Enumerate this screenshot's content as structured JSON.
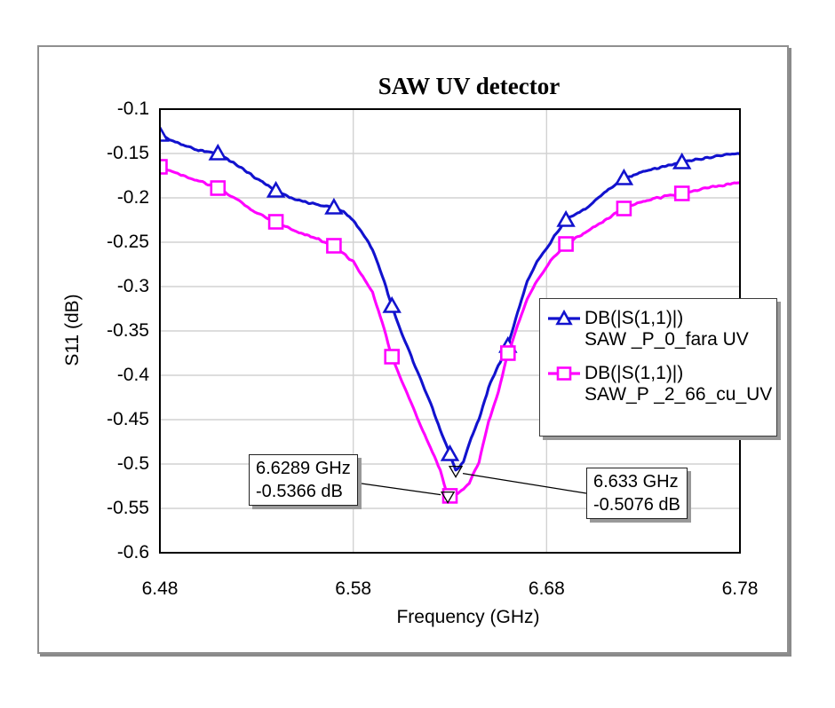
{
  "chart_data": {
    "type": "line",
    "title": "SAW UV detector",
    "xlabel": "Frequency (GHz)",
    "ylabel": "S11 (dB)",
    "xlim": [
      6.48,
      6.78
    ],
    "ylim": [
      -0.6,
      -0.1
    ],
    "grid": true,
    "grid_color": "#d2d2d2",
    "legend_position": "right-middle",
    "x_ticks": {
      "values": [
        6.48,
        6.58,
        6.68,
        6.78
      ],
      "labels": [
        "6.48",
        "6.58",
        "6.68",
        "6.78"
      ]
    },
    "y_ticks": {
      "values": [
        -0.1,
        -0.15,
        -0.2,
        -0.25,
        -0.3,
        -0.35,
        -0.4,
        -0.45,
        -0.5,
        -0.55,
        -0.6
      ],
      "labels": [
        "-0.1",
        "-0.15",
        "-0.2",
        "-0.25",
        "-0.3",
        "-0.35",
        "-0.4",
        "-0.45",
        "-0.5",
        "-0.55",
        "-0.6"
      ]
    },
    "series": [
      {
        "name": "SAW _P_0_fara UV",
        "legend_line1": "DB(|S(1,1)|)",
        "legend_line2": "SAW _P_0_fara UV",
        "color": "#1212ce",
        "marker": "triangle",
        "marker_x": [
          6.48,
          6.51,
          6.54,
          6.57,
          6.6,
          6.63,
          6.66,
          6.69,
          6.72,
          6.75
        ],
        "points": [
          [
            6.48,
            -0.129
          ],
          [
            6.49,
            -0.139
          ],
          [
            6.5,
            -0.146
          ],
          [
            6.51,
            -0.15
          ],
          [
            6.52,
            -0.163
          ],
          [
            6.53,
            -0.178
          ],
          [
            6.54,
            -0.192
          ],
          [
            6.55,
            -0.202
          ],
          [
            6.56,
            -0.207
          ],
          [
            6.57,
            -0.211
          ],
          [
            6.575,
            -0.215
          ],
          [
            6.58,
            -0.226
          ],
          [
            6.585,
            -0.24
          ],
          [
            6.59,
            -0.258
          ],
          [
            6.595,
            -0.287
          ],
          [
            6.6,
            -0.322
          ],
          [
            6.605,
            -0.352
          ],
          [
            6.61,
            -0.379
          ],
          [
            6.615,
            -0.406
          ],
          [
            6.62,
            -0.432
          ],
          [
            6.625,
            -0.462
          ],
          [
            6.63,
            -0.489
          ],
          [
            6.633,
            -0.5076
          ],
          [
            6.637,
            -0.498
          ],
          [
            6.64,
            -0.477
          ],
          [
            6.645,
            -0.449
          ],
          [
            6.65,
            -0.414
          ],
          [
            6.655,
            -0.389
          ],
          [
            6.66,
            -0.367
          ],
          [
            6.665,
            -0.329
          ],
          [
            6.67,
            -0.294
          ],
          [
            6.675,
            -0.271
          ],
          [
            6.68,
            -0.257
          ],
          [
            6.685,
            -0.24
          ],
          [
            6.69,
            -0.225
          ],
          [
            6.7,
            -0.212
          ],
          [
            6.71,
            -0.194
          ],
          [
            6.72,
            -0.178
          ],
          [
            6.73,
            -0.171
          ],
          [
            6.74,
            -0.165
          ],
          [
            6.75,
            -0.16
          ],
          [
            6.76,
            -0.156
          ],
          [
            6.77,
            -0.152
          ],
          [
            6.78,
            -0.15
          ]
        ]
      },
      {
        "name": "SAW_P _2_66_cu_UV",
        "legend_line1": "DB(|S(1,1)|)",
        "legend_line2": "SAW_P _2_66_cu_UV",
        "color": "#ff00ff",
        "marker": "square",
        "marker_x": [
          6.48,
          6.51,
          6.54,
          6.57,
          6.6,
          6.63,
          6.66,
          6.69,
          6.72,
          6.75
        ],
        "points": [
          [
            6.48,
            -0.165
          ],
          [
            6.49,
            -0.173
          ],
          [
            6.5,
            -0.181
          ],
          [
            6.51,
            -0.189
          ],
          [
            6.52,
            -0.202
          ],
          [
            6.53,
            -0.217
          ],
          [
            6.54,
            -0.227
          ],
          [
            6.55,
            -0.237
          ],
          [
            6.56,
            -0.245
          ],
          [
            6.57,
            -0.254
          ],
          [
            6.58,
            -0.272
          ],
          [
            6.585,
            -0.288
          ],
          [
            6.59,
            -0.307
          ],
          [
            6.595,
            -0.341
          ],
          [
            6.6,
            -0.379
          ],
          [
            6.605,
            -0.406
          ],
          [
            6.61,
            -0.432
          ],
          [
            6.615,
            -0.458
          ],
          [
            6.62,
            -0.482
          ],
          [
            6.625,
            -0.507
          ],
          [
            6.6289,
            -0.5366
          ],
          [
            6.633,
            -0.534
          ],
          [
            6.637,
            -0.528
          ],
          [
            6.64,
            -0.521
          ],
          [
            6.645,
            -0.498
          ],
          [
            6.65,
            -0.452
          ],
          [
            6.655,
            -0.419
          ],
          [
            6.66,
            -0.375
          ],
          [
            6.665,
            -0.344
          ],
          [
            6.67,
            -0.314
          ],
          [
            6.675,
            -0.294
          ],
          [
            6.68,
            -0.277
          ],
          [
            6.685,
            -0.264
          ],
          [
            6.69,
            -0.252
          ],
          [
            6.7,
            -0.239
          ],
          [
            6.71,
            -0.225
          ],
          [
            6.72,
            -0.212
          ],
          [
            6.73,
            -0.204
          ],
          [
            6.74,
            -0.199
          ],
          [
            6.75,
            -0.195
          ],
          [
            6.76,
            -0.19
          ],
          [
            6.77,
            -0.186
          ],
          [
            6.78,
            -0.182
          ]
        ]
      }
    ],
    "annotations": [
      {
        "freq_label": "6.6289 GHz",
        "db_label": "-0.5366 dB",
        "freq": 6.6289,
        "db": -0.5366,
        "series": "SAW_P _2_66_cu_UV"
      },
      {
        "freq_label": "6.633 GHz",
        "db_label": "-0.5076 dB",
        "freq": 6.633,
        "db": -0.5076,
        "series": "SAW _P_0_fara UV"
      }
    ]
  }
}
